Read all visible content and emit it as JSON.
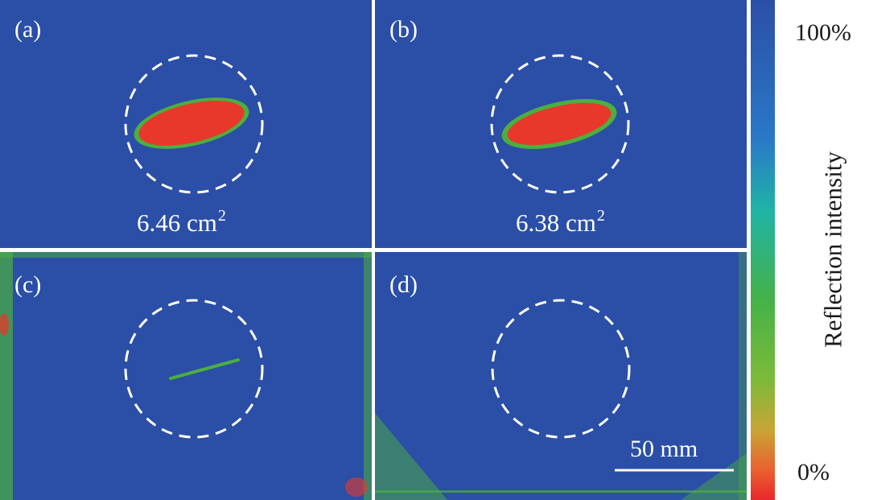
{
  "panels": [
    {
      "label": "(a)",
      "area": "6.46 cm",
      "area_sup": "2"
    },
    {
      "label": "(b)",
      "area": "6.38 cm",
      "area_sup": "2"
    },
    {
      "label": "(c)"
    },
    {
      "label": "(d)"
    }
  ],
  "colorbar": {
    "title": "Reflection intensity",
    "max_label": "100%",
    "min_label": "0%"
  },
  "scale_bar": {
    "label": "50 mm"
  },
  "colors": {
    "background_blue": "#2b4fa6",
    "defect_red": "#e8382b",
    "defect_green": "#4caf3e",
    "circle": "#ffffff"
  }
}
